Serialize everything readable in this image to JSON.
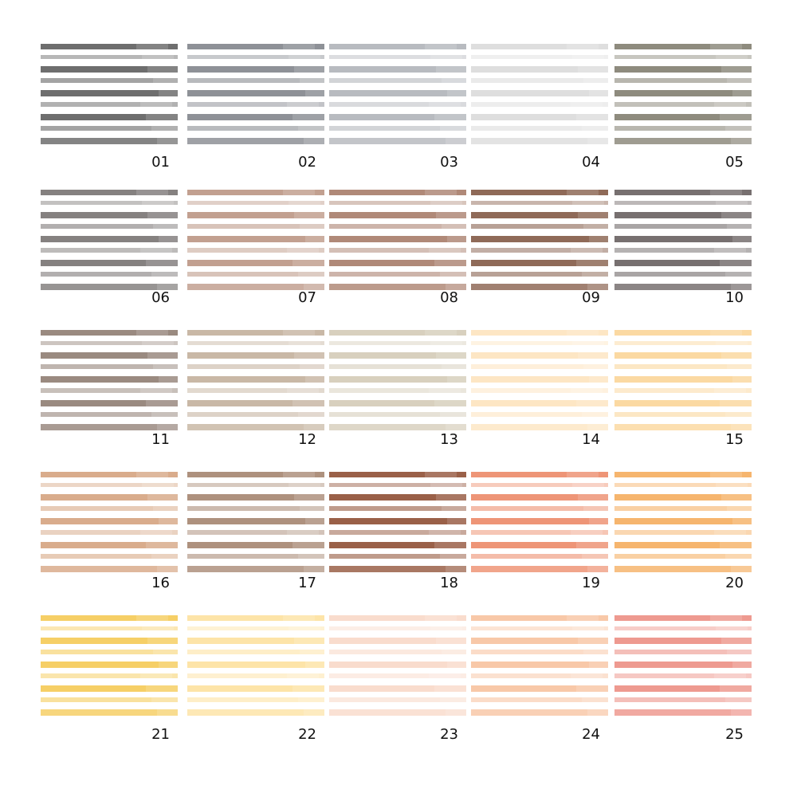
{
  "swatches": [
    {
      "label": "01",
      "color": "#6e6e6e"
    },
    {
      "label": "02",
      "color": "#8e9197"
    },
    {
      "label": "03",
      "color": "#b8bbc0"
    },
    {
      "label": "04",
      "color": "#dedede"
    },
    {
      "label": "05",
      "color": "#8e8b7e"
    },
    {
      "label": "06",
      "color": "#858180"
    },
    {
      "label": "07",
      "color": "#c2a090"
    },
    {
      "label": "08",
      "color": "#b08978"
    },
    {
      "label": "09",
      "color": "#8f6a58"
    },
    {
      "label": "10",
      "color": "#777070"
    },
    {
      "label": "11",
      "color": "#9a8a80"
    },
    {
      "label": "12",
      "color": "#c9b8a6"
    },
    {
      "label": "13",
      "color": "#d8d0be"
    },
    {
      "label": "14",
      "color": "#fde6c4"
    },
    {
      "label": "15",
      "color": "#fbd9a2"
    },
    {
      "label": "16",
      "color": "#d9ac8c"
    },
    {
      "label": "17",
      "color": "#ae917e"
    },
    {
      "label": "18",
      "color": "#9a6048"
    },
    {
      "label": "19",
      "color": "#ee9577"
    },
    {
      "label": "20",
      "color": "#f6b56e"
    },
    {
      "label": "21",
      "color": "#f6cf66"
    },
    {
      "label": "22",
      "color": "#fde4a8"
    },
    {
      "label": "23",
      "color": "#f9dccd"
    },
    {
      "label": "24",
      "color": "#f8c8a8"
    },
    {
      "label": "25",
      "color": "#ee9a90"
    }
  ]
}
